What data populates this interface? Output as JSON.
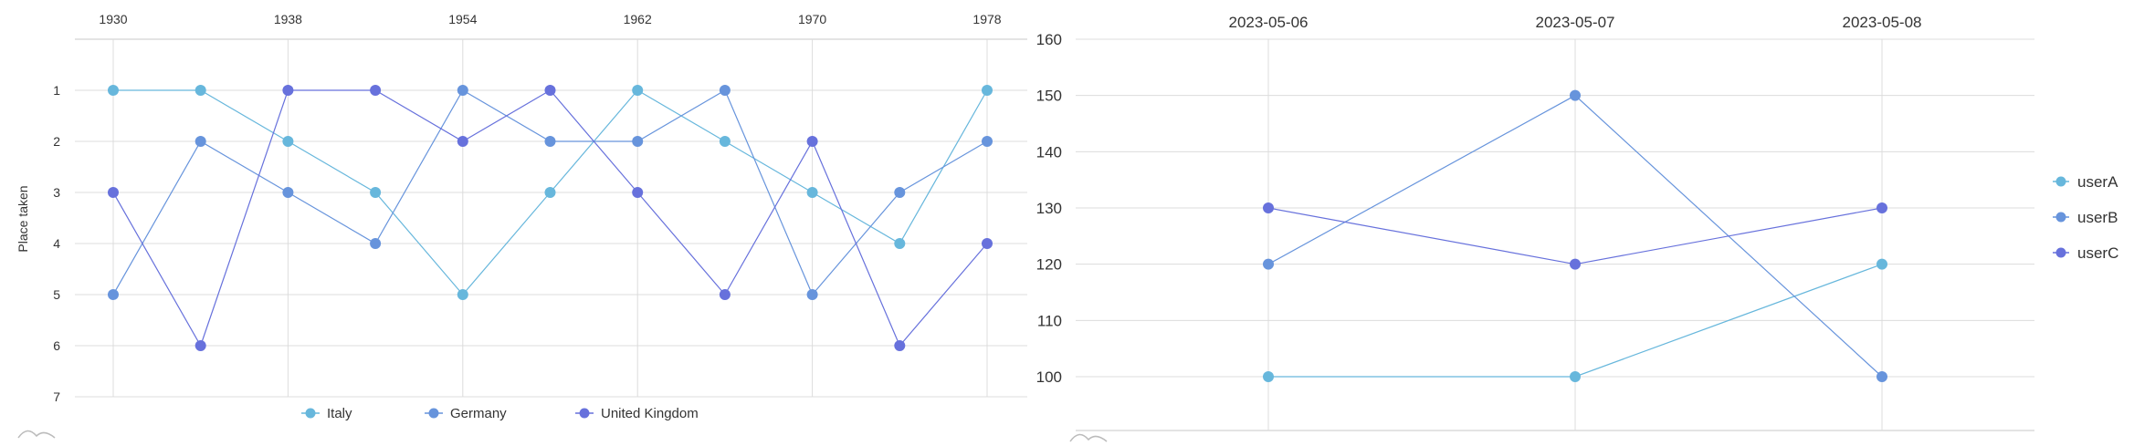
{
  "colors": {
    "grid": "#dcdcdc",
    "axis_line": "#c8c8c8",
    "series": [
      "#67b7dc",
      "#6794dc",
      "#6771dc"
    ]
  },
  "chart_data": [
    {
      "type": "line",
      "x": [
        1930,
        1934,
        1938,
        1950,
        1954,
        1958,
        1962,
        1966,
        1970,
        1974,
        1978
      ],
      "x_tick_labels": [
        "1930",
        "1938",
        "1954",
        "1962",
        "1970",
        "1978"
      ],
      "x_axis_position": "top",
      "ylabel": "Place taken",
      "y_tick_labels": [
        "1",
        "2",
        "3",
        "4",
        "5",
        "6",
        "7"
      ],
      "ylim": [
        0,
        7
      ],
      "y_inverted": true,
      "grid": true,
      "legend_position": "bottom",
      "series": [
        {
          "name": "Italy",
          "values": [
            1,
            1,
            2,
            3,
            5,
            3,
            1,
            2,
            3,
            4,
            1
          ]
        },
        {
          "name": "Germany",
          "values": [
            5,
            2,
            3,
            4,
            1,
            2,
            2,
            1,
            5,
            3,
            2
          ]
        },
        {
          "name": "United Kingdom",
          "values": [
            3,
            6,
            1,
            1,
            2,
            1,
            3,
            5,
            2,
            6,
            4
          ]
        }
      ]
    },
    {
      "type": "line",
      "x": [
        "2023-05-06",
        "2023-05-07",
        "2023-05-08"
      ],
      "x_tick_labels": [
        "2023-05-06",
        "2023-05-07",
        "2023-05-08"
      ],
      "x_axis_position": "top",
      "y_tick_labels": [
        "100",
        "110",
        "120",
        "130",
        "140",
        "150",
        "160"
      ],
      "ylim": [
        93,
        160
      ],
      "grid": true,
      "legend_position": "right",
      "series": [
        {
          "name": "userA",
          "values": [
            100,
            100,
            120
          ]
        },
        {
          "name": "userB",
          "values": [
            120,
            150,
            100
          ]
        },
        {
          "name": "userC",
          "values": [
            130,
            120,
            130
          ]
        }
      ]
    }
  ]
}
